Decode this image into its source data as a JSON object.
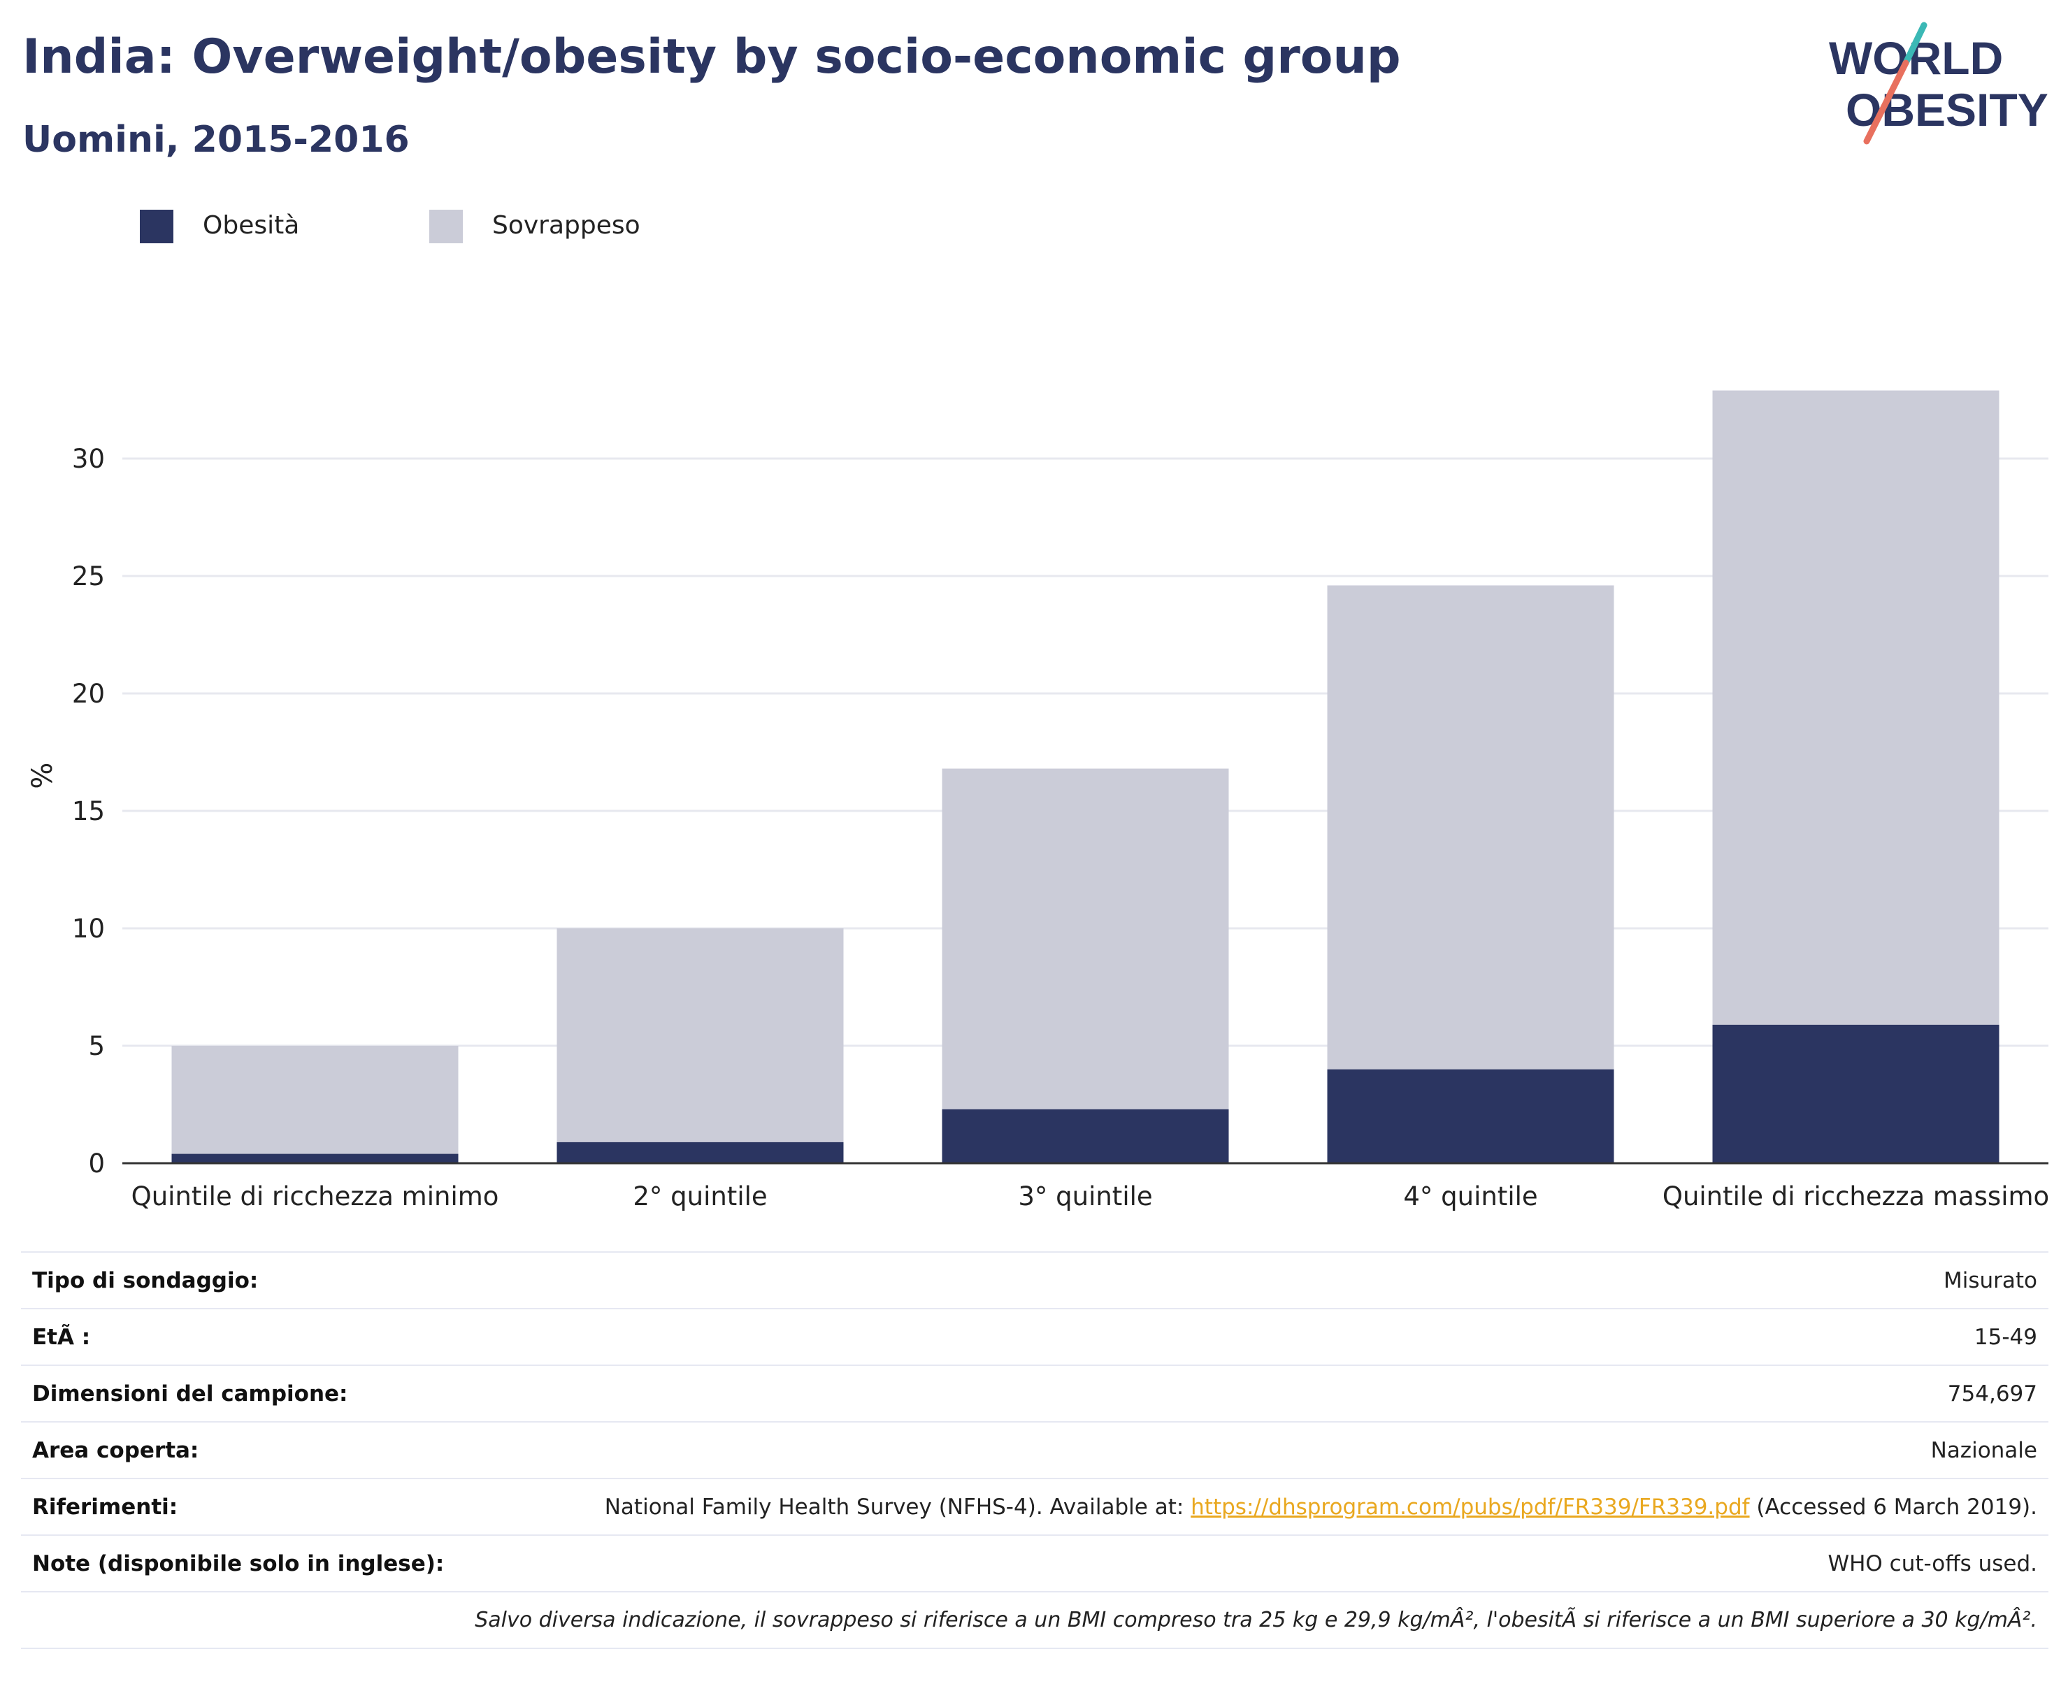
{
  "header": {
    "title": "India: Overweight/obesity by socio-economic group",
    "subtitle": "Uomini, 2015-2016"
  },
  "logo": {
    "line1": "WORLD",
    "line2": "OBESITY",
    "accent_color": "#e8705e",
    "accent_color2": "#3bb8b5"
  },
  "colors": {
    "obesity": "#2b3561",
    "overweight": "#cbccd8",
    "text": "#2b3561"
  },
  "chart_data": {
    "type": "bar",
    "stacked": true,
    "categories": [
      "Quintile di ricchezza minimo",
      "2° quintile",
      "3° quintile",
      "4° quintile",
      "Quintile di ricchezza massimo"
    ],
    "series": [
      {
        "name": "Obesità",
        "values": [
          0.4,
          0.9,
          2.3,
          4.0,
          5.9
        ]
      },
      {
        "name": "Sovrappeso",
        "values": [
          4.6,
          9.1,
          14.5,
          20.6,
          27.0
        ]
      }
    ],
    "ylabel": "%",
    "yticks": [
      0,
      5,
      10,
      15,
      20,
      25,
      30
    ],
    "ylim": [
      0,
      33
    ],
    "grid": true,
    "legend": "top-left"
  },
  "info": {
    "rows": [
      {
        "label": "Tipo di sondaggio:",
        "value": "Misurato"
      },
      {
        "label": "EtÃ :",
        "value": "15-49"
      },
      {
        "label": "Dimensioni del campione:",
        "value": "754,697"
      },
      {
        "label": "Area coperta:",
        "value": "Nazionale"
      }
    ],
    "references": {
      "label": "Riferimenti:",
      "prefix": "National Family Health Survey (NFHS-4). Available at: ",
      "link": "https://dhsprogram.com/pubs/pdf/FR339/FR339.pdf",
      "suffix": " (Accessed 6 March 2019)."
    },
    "notes": {
      "label": "Note (disponibile solo in inglese):",
      "value": "WHO cut-offs used."
    },
    "footnote": "Salvo diversa indicazione, il sovrappeso si riferisce a un BMI compreso tra 25 kg e 29,9 kg/mÂ², l'obesitÃ  si riferisce a un BMI superiore a 30 kg/mÂ²."
  }
}
